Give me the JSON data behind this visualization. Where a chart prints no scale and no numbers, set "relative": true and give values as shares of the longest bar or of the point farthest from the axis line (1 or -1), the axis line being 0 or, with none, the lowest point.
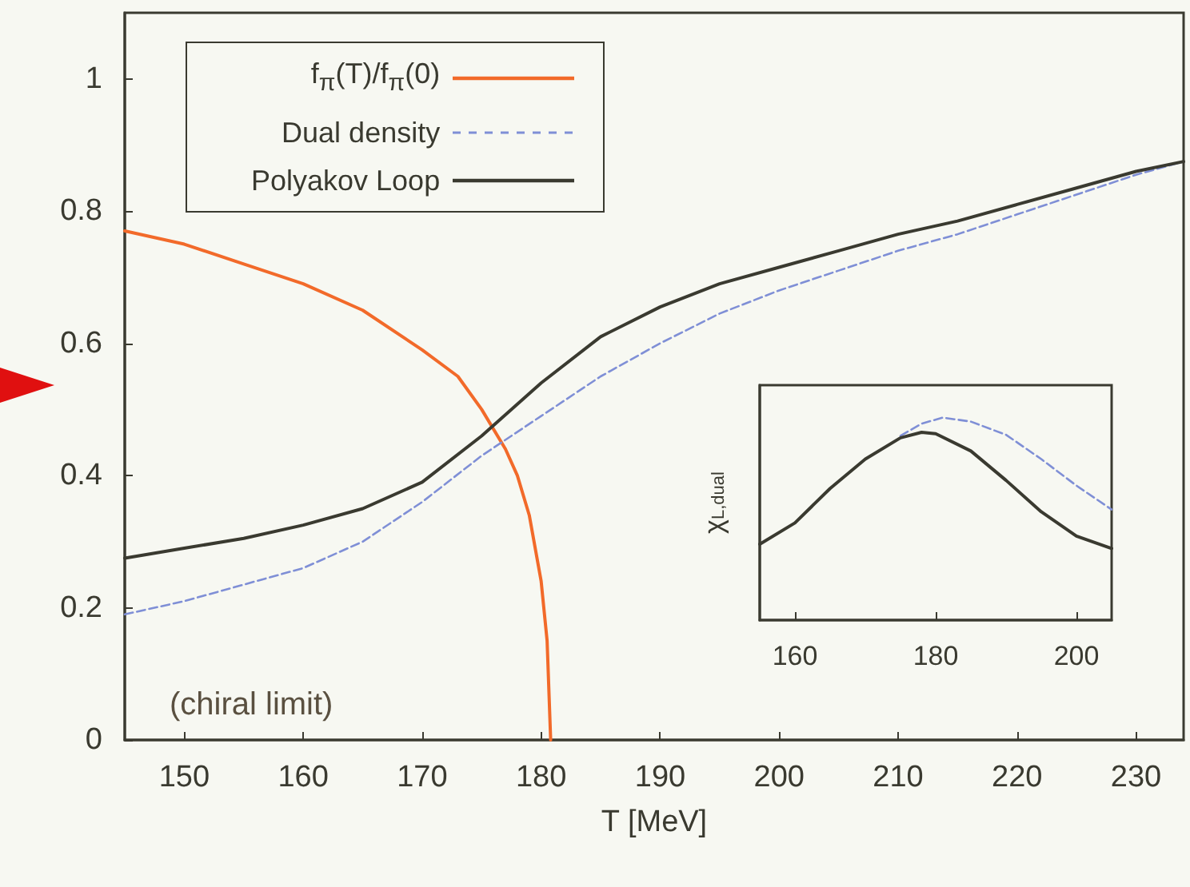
{
  "chart_data": [
    {
      "type": "line",
      "xlabel": "T [MeV]",
      "xlim": [
        145,
        234
      ],
      "xticks": [
        150,
        160,
        170,
        180,
        190,
        200,
        210,
        220,
        230
      ],
      "ylim": [
        0,
        1.1
      ],
      "yticks": [
        0,
        0.2,
        0.4,
        0.6,
        0.8,
        1
      ],
      "grid": false,
      "legend": "top left",
      "marker": "none",
      "annotations": [
        "(chiral limit)"
      ],
      "series": [
        {
          "name": "f$_{π}$(T)/f$_{π}$(0)",
          "color": "#f26a2a",
          "line_style": "solid",
          "x": [
            145,
            150,
            155,
            160,
            165,
            170,
            173,
            175,
            177,
            178,
            179,
            180,
            180.5,
            180.8
          ],
          "values": [
            0.77,
            0.75,
            0.72,
            0.69,
            0.65,
            0.59,
            0.55,
            0.5,
            0.44,
            0.4,
            0.34,
            0.24,
            0.15,
            0
          ]
        },
        {
          "name": "Dual density",
          "color": "#7f8fd6",
          "line_style": "dashed",
          "x": [
            145,
            150,
            155,
            160,
            165,
            170,
            175,
            180,
            185,
            190,
            195,
            200,
            205,
            210,
            215,
            220,
            225,
            230,
            234
          ],
          "values": [
            0.19,
            0.21,
            0.235,
            0.26,
            0.3,
            0.36,
            0.43,
            0.49,
            0.55,
            0.6,
            0.645,
            0.68,
            0.71,
            0.74,
            0.765,
            0.795,
            0.825,
            0.855,
            0.875
          ]
        },
        {
          "name": "Polyakov Loop",
          "color": "#3a3a30",
          "line_style": "solid",
          "x": [
            145,
            150,
            155,
            160,
            165,
            170,
            175,
            180,
            185,
            190,
            195,
            200,
            205,
            210,
            215,
            220,
            225,
            230,
            234
          ],
          "values": [
            0.275,
            0.29,
            0.305,
            0.325,
            0.35,
            0.39,
            0.46,
            0.54,
            0.61,
            0.655,
            0.69,
            0.715,
            0.74,
            0.765,
            0.785,
            0.81,
            0.835,
            0.86,
            0.875
          ]
        }
      ]
    },
    {
      "type": "line",
      "ylabel": "χ$_{L,dual}$",
      "xlim": [
        155,
        205
      ],
      "xticks": [
        160,
        180,
        200
      ],
      "relative": true,
      "tick_labels": "x",
      "grid": false,
      "legend": false,
      "marker": "none",
      "series": [
        {
          "color": "#7f8fd6",
          "line_style": "dashed",
          "x": [
            175,
            178,
            181,
            185,
            190,
            195,
            200,
            205
          ],
          "values": [
            0.91,
            0.97,
            1.0,
            0.98,
            0.915,
            0.795,
            0.664,
            0.546
          ]
        },
        {
          "color": "#3a3a30",
          "line_style": "solid",
          "x": [
            155,
            160,
            165,
            170,
            175,
            178,
            180,
            185,
            190,
            195,
            200,
            205
          ],
          "values": [
            0.375,
            0.48,
            0.65,
            0.795,
            0.9,
            0.927,
            0.92,
            0.835,
            0.69,
            0.535,
            0.415,
            0.354
          ]
        }
      ]
    }
  ]
}
